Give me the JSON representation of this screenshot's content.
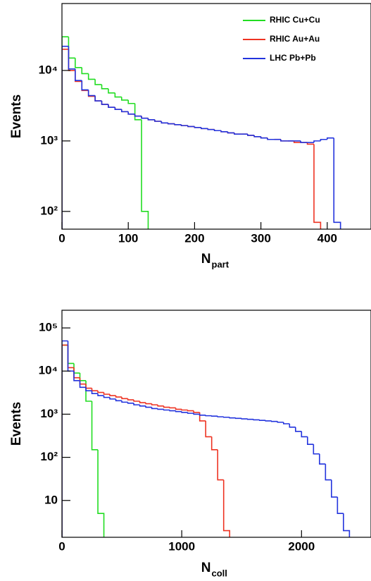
{
  "chart_data": [
    {
      "type": "histogram",
      "ylabel": "Events",
      "xlabel": "N",
      "xlabel_sub": "part",
      "log_y": true,
      "legend": "upper right",
      "xlim": [
        0,
        466
      ],
      "ylim": [
        56,
        89000
      ],
      "xticks": [
        0,
        100,
        200,
        300,
        400
      ],
      "yticks": [
        {
          "value": 100,
          "label": "10²"
        },
        {
          "value": 1000,
          "label": "10³"
        },
        {
          "value": 10000,
          "label": "10⁴"
        }
      ],
      "bins": [
        0,
        10,
        20,
        30,
        40,
        50,
        60,
        70,
        80,
        90,
        100,
        110,
        120,
        130,
        140,
        150,
        160,
        170,
        180,
        190,
        200,
        210,
        220,
        230,
        240,
        250,
        260,
        270,
        280,
        290,
        300,
        310,
        320,
        330,
        340,
        350,
        360,
        370,
        380,
        390,
        400,
        410,
        420
      ],
      "series": [
        {
          "name": "RHIC Cu+Cu",
          "color": "#22dd22",
          "values": [
            30000,
            15000,
            11000,
            9000,
            7500,
            6300,
            5500,
            4800,
            4200,
            3800,
            3400,
            2000,
            100,
            null,
            null,
            null,
            null,
            null,
            null,
            null,
            null,
            null,
            null,
            null,
            null,
            null,
            null,
            null,
            null,
            null,
            null,
            null,
            null,
            null,
            null,
            null,
            null,
            null,
            null,
            null,
            null,
            null
          ]
        },
        {
          "name": "RHIC Au+Au",
          "color": "#ee3322",
          "values": [
            20000,
            10000,
            7000,
            5200,
            4300,
            3700,
            3300,
            3000,
            2800,
            2600,
            2400,
            2250,
            2100,
            2000,
            1900,
            1800,
            1750,
            1700,
            1650,
            1600,
            1550,
            1500,
            1450,
            1400,
            1350,
            1300,
            1250,
            1250,
            1200,
            1150,
            1100,
            1050,
            1050,
            1000,
            1000,
            950,
            950,
            900,
            70,
            null,
            null,
            null
          ]
        },
        {
          "name": "LHC Pb+Pb",
          "color": "#2233dd",
          "values": [
            22000,
            10500,
            7200,
            5300,
            4400,
            3700,
            3300,
            3000,
            2800,
            2600,
            2400,
            2250,
            2100,
            2000,
            1900,
            1800,
            1750,
            1700,
            1650,
            1600,
            1550,
            1500,
            1450,
            1400,
            1350,
            1300,
            1250,
            1250,
            1200,
            1150,
            1100,
            1050,
            1050,
            1000,
            1000,
            1000,
            950,
            950,
            1000,
            1050,
            1100,
            70
          ]
        }
      ]
    },
    {
      "type": "histogram",
      "ylabel": "Events",
      "xlabel": "N",
      "xlabel_sub": "coll",
      "log_y": true,
      "xlim": [
        0,
        2580
      ],
      "ylim": [
        1.4,
        257000
      ],
      "xticks": [
        0,
        1000,
        2000
      ],
      "yticks": [
        10,
        {
          "value": 100,
          "label": "10²"
        },
        {
          "value": 1000,
          "label": "10³"
        },
        {
          "value": 10000,
          "label": "10⁴"
        },
        {
          "value": 100000,
          "label": "10⁵"
        }
      ],
      "bins": [
        0,
        50,
        100,
        150,
        200,
        250,
        300,
        350,
        400,
        450,
        500,
        550,
        600,
        650,
        700,
        750,
        800,
        850,
        900,
        950,
        1000,
        1050,
        1100,
        1150,
        1200,
        1250,
        1300,
        1350,
        1400,
        1450,
        1500,
        1550,
        1600,
        1650,
        1700,
        1750,
        1800,
        1850,
        1900,
        1950,
        2000,
        2050,
        2100,
        2150,
        2200,
        2250,
        2300,
        2350,
        2400,
        2450
      ],
      "series": [
        {
          "color": "#22dd22",
          "values": [
            40000,
            15000,
            9000,
            6000,
            2000,
            150,
            5,
            null,
            null,
            null,
            null,
            null,
            null,
            null,
            null,
            null,
            null,
            null,
            null,
            null,
            null,
            null,
            null,
            null,
            null,
            null,
            null,
            null,
            null,
            null,
            null,
            null,
            null,
            null,
            null,
            null,
            null,
            null,
            null,
            null,
            null,
            null,
            null,
            null,
            null,
            null,
            null,
            null,
            null
          ]
        },
        {
          "color": "#ee3322",
          "values": [
            40000,
            12000,
            7000,
            5000,
            4000,
            3500,
            3200,
            2900,
            2700,
            2500,
            2300,
            2150,
            2000,
            1850,
            1750,
            1650,
            1550,
            1450,
            1400,
            1300,
            1250,
            1200,
            1100,
            700,
            300,
            150,
            30,
            2,
            null,
            null,
            null,
            null,
            null,
            null,
            null,
            null,
            null,
            null,
            null,
            null,
            null,
            null,
            null,
            null,
            null,
            null,
            null,
            null,
            null
          ]
        },
        {
          "color": "#2233dd",
          "values": [
            50000,
            10000,
            6000,
            4200,
            3500,
            3000,
            2700,
            2450,
            2250,
            2050,
            1900,
            1800,
            1650,
            1550,
            1450,
            1350,
            1300,
            1250,
            1200,
            1150,
            1100,
            1050,
            1000,
            950,
            920,
            900,
            870,
            850,
            820,
            800,
            780,
            760,
            740,
            720,
            700,
            680,
            650,
            600,
            500,
            400,
            300,
            200,
            120,
            70,
            30,
            12,
            5,
            2,
            null
          ]
        }
      ]
    }
  ]
}
